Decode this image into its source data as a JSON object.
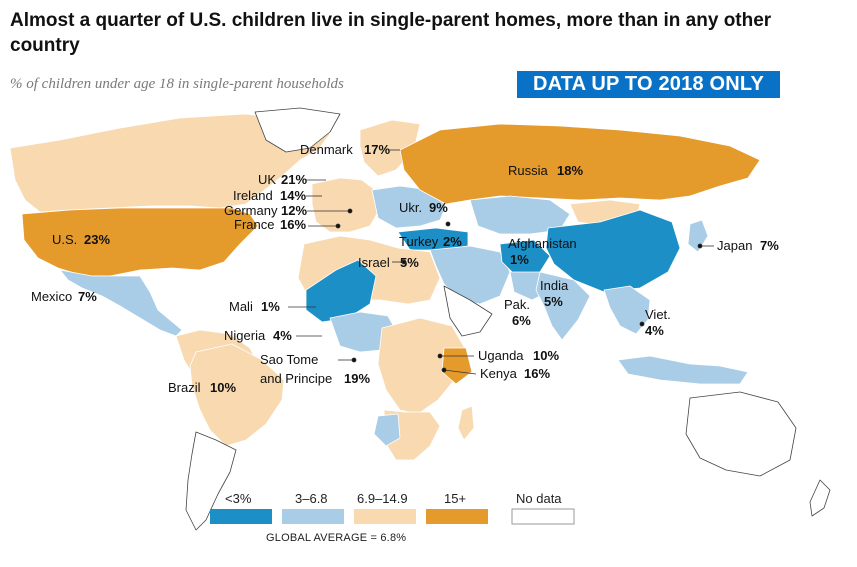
{
  "title": "Almost a quarter of U.S. children live in single-parent homes, more than in any other country",
  "subtitle": "% of children under age 18 in single-parent households",
  "banner": "DATA UP TO 2018 ONLY",
  "colors": {
    "lt3": "#1b8fc6",
    "c3_6": "#a9cde6",
    "c6_14": "#f8d9b0",
    "c15": "#e59a2c",
    "nodata": "#ffffff",
    "border": "#ffffff",
    "coast": "#444444"
  },
  "legend": {
    "items": [
      {
        "label": "<3%",
        "key": "lt3"
      },
      {
        "label": "3–6.8",
        "key": "c3_6"
      },
      {
        "label": "6.9–14.9",
        "key": "c6_14"
      },
      {
        "label": "15+",
        "key": "c15"
      },
      {
        "label": "No data",
        "key": "nodata"
      }
    ],
    "global_average": "GLOBAL AVERAGE = 6.8%"
  },
  "countries": {
    "denmark": {
      "name": "Denmark",
      "value": "17%"
    },
    "uk": {
      "name": "UK",
      "value": "21%"
    },
    "ireland": {
      "name": "Ireland",
      "value": "14%"
    },
    "germany": {
      "name": "Germany",
      "value": "12%"
    },
    "france": {
      "name": "France",
      "value": "16%"
    },
    "ukraine": {
      "name": "Ukr.",
      "value": "9%"
    },
    "russia": {
      "name": "Russia",
      "value": "18%"
    },
    "us": {
      "name": "U.S.",
      "value": "23%"
    },
    "turkey": {
      "name": "Turkey",
      "value": "2%"
    },
    "afghanistan": {
      "name": "Afghanistan",
      "value": "1%"
    },
    "israel": {
      "name": "Israel",
      "value": "5%"
    },
    "japan": {
      "name": "Japan",
      "value": "7%"
    },
    "india": {
      "name": "India",
      "value": "5%"
    },
    "pakistan": {
      "name": "Pak.",
      "value": "6%"
    },
    "mexico": {
      "name": "Mexico",
      "value": "7%"
    },
    "mali": {
      "name": "Mali",
      "value": "1%"
    },
    "nigeria": {
      "name": "Nigeria",
      "value": "4%"
    },
    "vietnam": {
      "name": "Viet.",
      "value": "4%"
    },
    "sao_tome": {
      "name_line1": "Sao Tome",
      "name_line2": "and Principe",
      "value": "19%"
    },
    "uganda": {
      "name": "Uganda",
      "value": "10%"
    },
    "kenya": {
      "name": "Kenya",
      "value": "16%"
    },
    "brazil": {
      "name": "Brazil",
      "value": "10%"
    }
  }
}
